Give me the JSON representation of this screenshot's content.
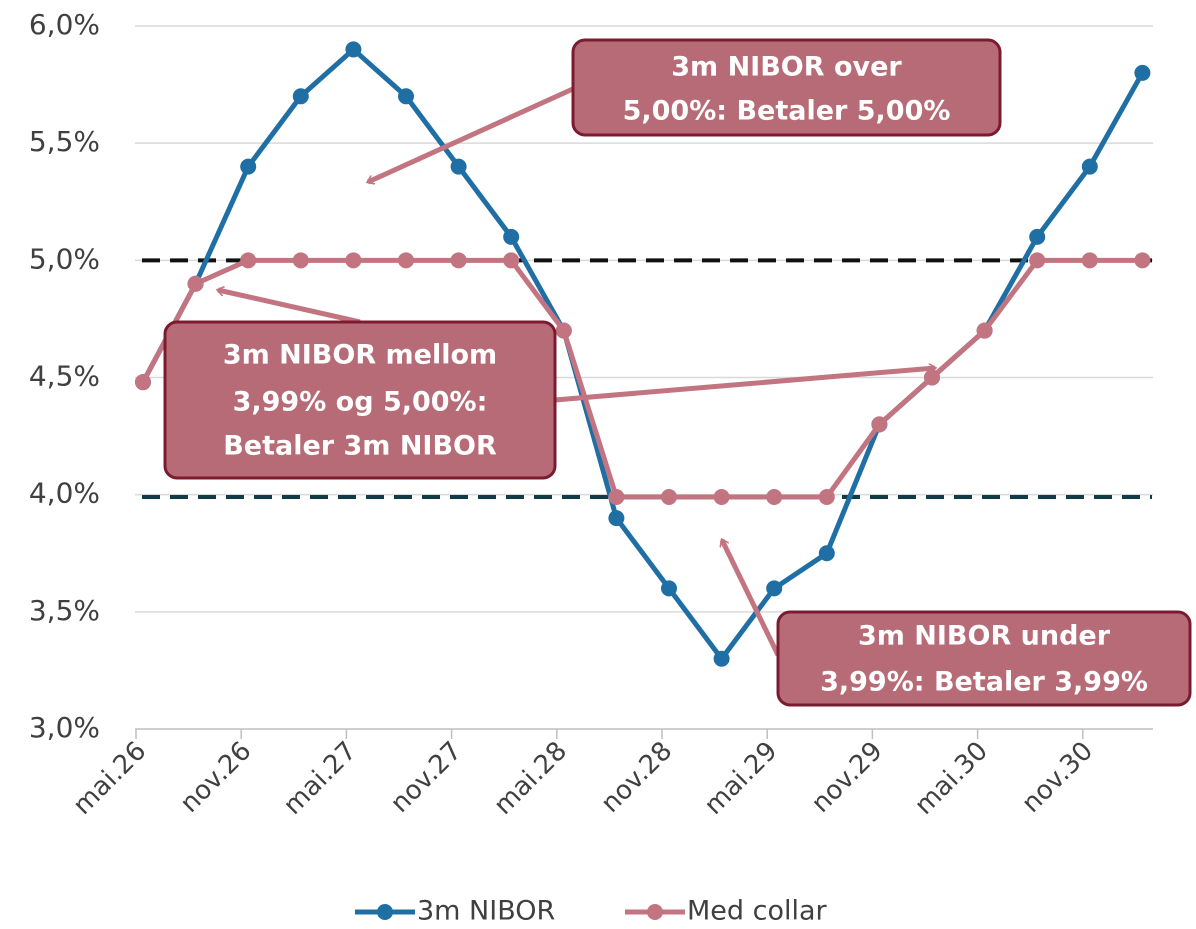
{
  "chart_data": {
    "type": "line",
    "categories": [
      "mai.26",
      null,
      "nov.26",
      null,
      "mai.27",
      null,
      "nov.27",
      null,
      "mai.28",
      null,
      "nov.28",
      null,
      "mai.29",
      null,
      "nov.29",
      null,
      "mai.30",
      null,
      "nov.30",
      null
    ],
    "series": [
      {
        "name": "3m NIBOR",
        "color": "#1f6fa5",
        "values": [
          4.48,
          4.9,
          5.4,
          5.7,
          5.9,
          5.7,
          5.4,
          5.1,
          4.7,
          3.9,
          3.6,
          3.3,
          3.6,
          3.75,
          4.3,
          4.5,
          4.7,
          5.1,
          5.4,
          5.8
        ]
      },
      {
        "name": "Med collar",
        "color": "#c27581",
        "values": [
          4.48,
          4.9,
          5.0,
          5.0,
          5.0,
          5.0,
          5.0,
          5.0,
          4.7,
          3.99,
          3.99,
          3.99,
          3.99,
          3.99,
          4.3,
          4.5,
          4.7,
          5.0,
          5.0,
          5.0
        ]
      }
    ],
    "ylim": [
      3,
      6
    ],
    "yticks": [
      {
        "value": 3,
        "label": "3,0%"
      },
      {
        "value": 3.5,
        "label": "3,5%"
      },
      {
        "value": 4,
        "label": "4,0%"
      },
      {
        "value": 4.5,
        "label": "4,5%"
      },
      {
        "value": 5,
        "label": "5,0%"
      },
      {
        "value": 5.5,
        "label": "5,5%"
      },
      {
        "value": 6,
        "label": "6,0%"
      }
    ],
    "grid": true,
    "reference_lines": [
      {
        "value": 5,
        "color": "#111111"
      },
      {
        "value": 3.99,
        "color": "#123c45"
      }
    ],
    "annotations": [
      {
        "lines": [
          "3m NIBOR over",
          "5,00%: Betaler 5,00%"
        ]
      },
      {
        "lines": [
          "3m NIBOR mellom",
          "3,99% og 5,00%:",
          "Betaler 3m NIBOR"
        ]
      },
      {
        "lines": [
          "3m NIBOR under",
          "3,99%: Betaler 3,99%"
        ]
      }
    ],
    "legend": "bottom"
  }
}
